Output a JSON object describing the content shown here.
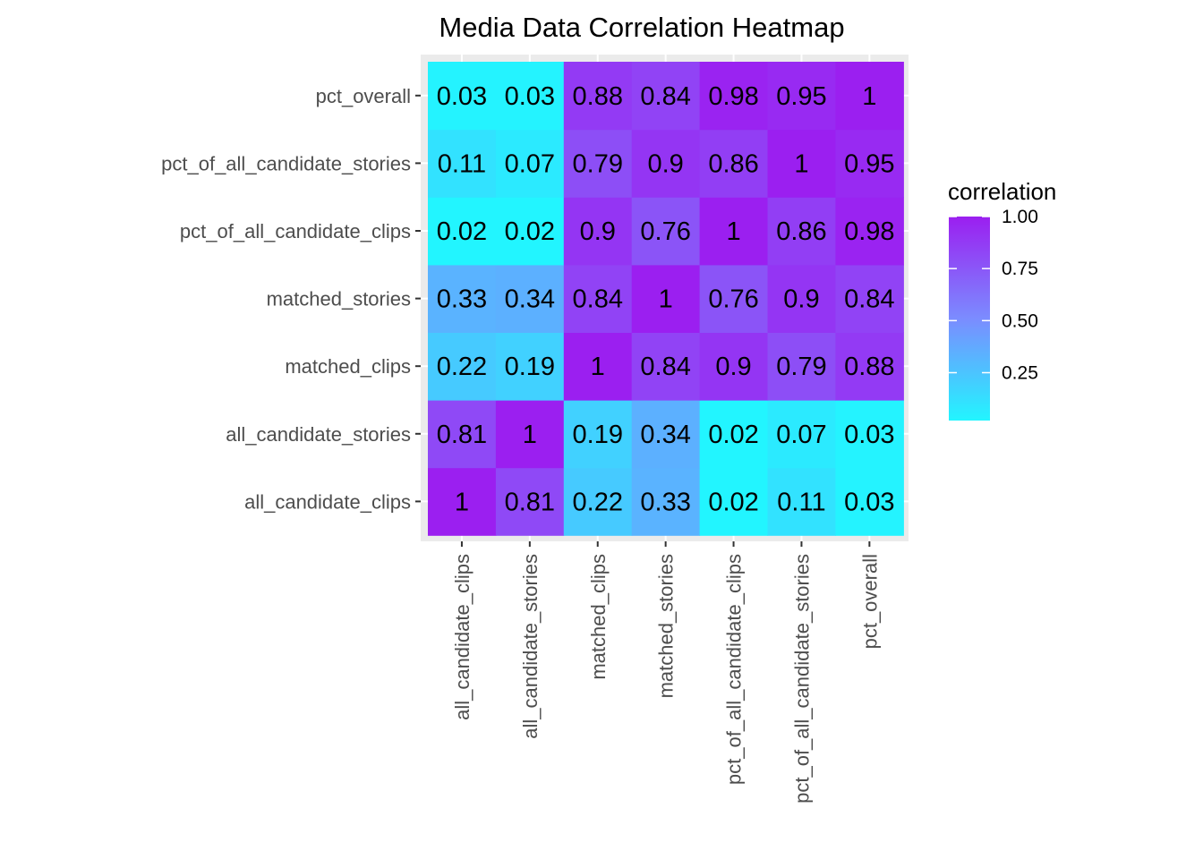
{
  "chart_data": {
    "type": "heatmap",
    "title": "Media Data Correlation Heatmap",
    "xlabel": "",
    "ylabel": "",
    "x_categories": [
      "all_candidate_clips",
      "all_candidate_stories",
      "matched_clips",
      "matched_stories",
      "pct_of_all_candidate_clips",
      "pct_of_all_candidate_stories",
      "pct_overall"
    ],
    "y_categories": [
      "all_candidate_clips",
      "all_candidate_stories",
      "matched_clips",
      "matched_stories",
      "pct_of_all_candidate_clips",
      "pct_of_all_candidate_stories",
      "pct_overall"
    ],
    "values": [
      [
        1,
        0.81,
        0.22,
        0.33,
        0.02,
        0.11,
        0.03
      ],
      [
        0.81,
        1,
        0.19,
        0.34,
        0.02,
        0.07,
        0.03
      ],
      [
        0.22,
        0.19,
        1,
        0.84,
        0.9,
        0.79,
        0.88
      ],
      [
        0.33,
        0.34,
        0.84,
        1,
        0.76,
        0.9,
        0.84
      ],
      [
        0.02,
        0.02,
        0.9,
        0.76,
        1,
        0.86,
        0.98
      ],
      [
        0.11,
        0.07,
        0.79,
        0.9,
        0.86,
        1,
        0.95
      ],
      [
        0.03,
        0.03,
        0.88,
        0.84,
        0.98,
        0.95,
        1
      ]
    ],
    "legend": {
      "title": "correlation",
      "ticks": [
        1.0,
        0.75,
        0.5,
        0.25
      ],
      "tick_labels": [
        "1.00",
        "0.75",
        "0.50",
        "0.25"
      ],
      "range": [
        0.02,
        1.0
      ],
      "placement": "right"
    },
    "colors": {
      "low": "#22f5ff",
      "mid": "#7b8cff",
      "high": "#9b1ff0",
      "panel_background": "#ebebeb",
      "grid": "#ffffff"
    }
  }
}
